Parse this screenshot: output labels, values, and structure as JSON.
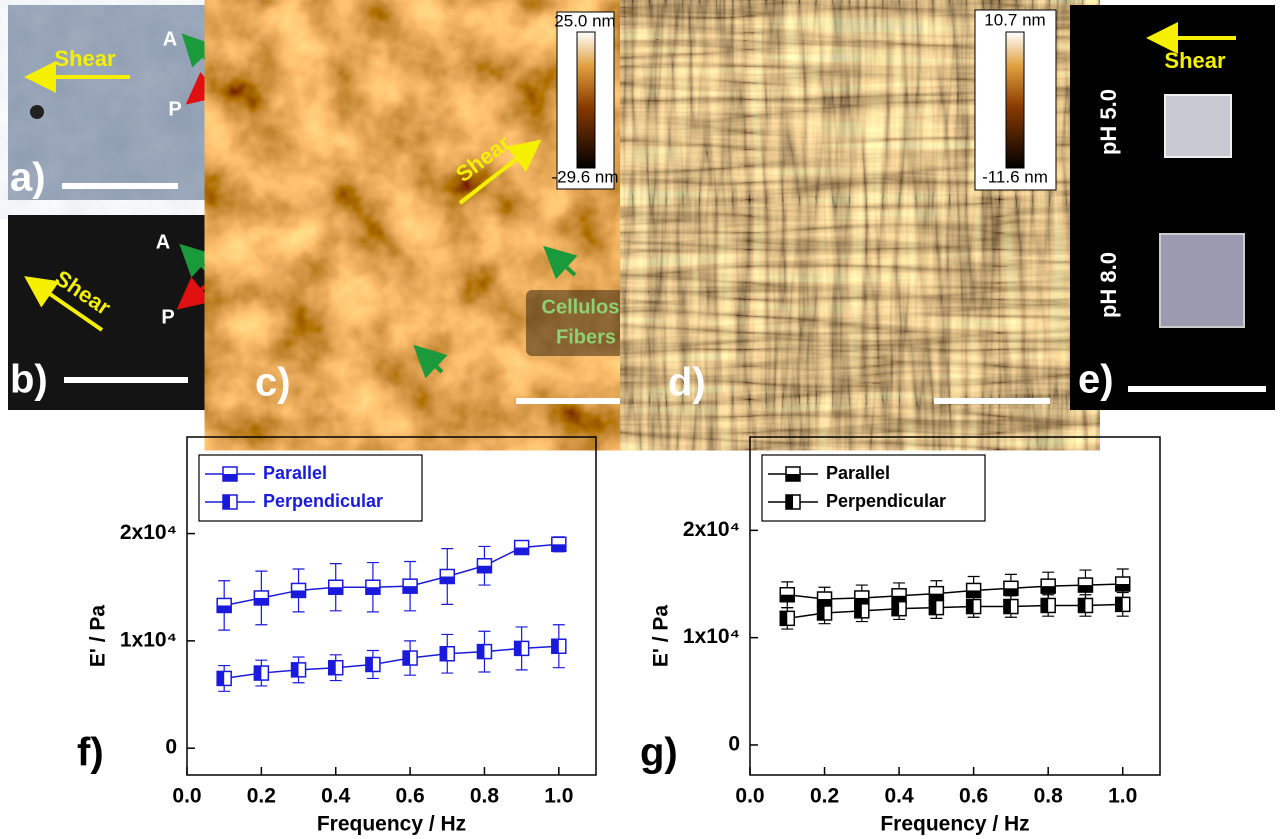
{
  "panels": {
    "a": {
      "label": "a)",
      "shear": "Shear",
      "analyzer": "A",
      "polarizer": "P"
    },
    "b": {
      "label": "b)",
      "shear": "Shear",
      "analyzer": "A",
      "polarizer": "P"
    },
    "c": {
      "label": "c)",
      "shear": "Shear",
      "colorbar_max": "25.0 nm",
      "colorbar_min": "-29.6 nm",
      "annotation": [
        "Cellulose",
        "Fibers"
      ]
    },
    "d": {
      "label": "d)",
      "colorbar_max": "10.7 nm",
      "colorbar_min": "-11.6 nm"
    },
    "e": {
      "label": "e)",
      "shear": "Shear",
      "top_sample": "pH 5.0",
      "bottom_sample": "pH 8.0"
    }
  },
  "chart_data": [
    {
      "type": "line",
      "panel_label": "f)",
      "xlabel": "Frequency / Hz",
      "ylabel": "E' / Pa",
      "x": [
        0.1,
        0.2,
        0.3,
        0.4,
        0.5,
        0.6,
        0.7,
        0.8,
        0.9,
        1.0
      ],
      "series": [
        {
          "name": "Parallel",
          "color": "#1a1adc",
          "marker_fill": "bottom",
          "values": [
            13300,
            14000,
            14700,
            15000,
            15000,
            15100,
            16000,
            17000,
            18700,
            19000
          ],
          "errors": [
            2300,
            2500,
            2000,
            2200,
            2300,
            2300,
            2600,
            1800,
            500,
            700
          ]
        },
        {
          "name": "Perpendicular",
          "color": "#1a1adc",
          "marker_fill": "left",
          "values": [
            6500,
            7000,
            7300,
            7500,
            7800,
            8400,
            8800,
            9000,
            9300,
            9500
          ],
          "errors": [
            1200,
            1200,
            1200,
            1200,
            1300,
            1600,
            1800,
            1900,
            2000,
            2000
          ]
        }
      ],
      "xlim": [
        0,
        1.1
      ],
      "ylim": [
        -2500,
        29000
      ],
      "xticks": [
        {
          "value": 0,
          "label": "0.0"
        },
        {
          "value": 0.2,
          "label": "0.2"
        },
        {
          "value": 0.4,
          "label": "0.4"
        },
        {
          "value": 0.6,
          "label": "0.6"
        },
        {
          "value": 0.8,
          "label": "0.8"
        },
        {
          "value": 1,
          "label": "1.0"
        }
      ],
      "yticks": [
        0,
        {
          "value": 10000,
          "label": "1x10⁴"
        },
        {
          "value": 20000,
          "label": "2x10⁴"
        }
      ],
      "legend": "upper left"
    },
    {
      "type": "line",
      "panel_label": "g)",
      "xlabel": "Frequency / Hz",
      "ylabel": "E' / Pa",
      "x": [
        0.1,
        0.2,
        0.3,
        0.4,
        0.5,
        0.6,
        0.7,
        0.8,
        0.9,
        1.0
      ],
      "series": [
        {
          "name": "Parallel",
          "color": "#000000",
          "marker_fill": "bottom",
          "values": [
            14000,
            13600,
            13700,
            13900,
            14100,
            14400,
            14600,
            14800,
            14900,
            15000
          ],
          "errors": [
            1200,
            1100,
            1200,
            1200,
            1200,
            1300,
            1300,
            1300,
            1400,
            1400
          ]
        },
        {
          "name": "Perpendicular",
          "color": "#000000",
          "marker_fill": "left",
          "values": [
            11800,
            12300,
            12500,
            12700,
            12800,
            12900,
            12900,
            13000,
            13000,
            13100
          ],
          "errors": [
            1000,
            1000,
            1000,
            1000,
            1000,
            1000,
            1000,
            1000,
            1000,
            1100
          ]
        }
      ],
      "xlim": [
        0,
        1.1
      ],
      "ylim": [
        -2800,
        28700
      ],
      "xticks": [
        {
          "value": 0,
          "label": "0.0"
        },
        {
          "value": 0.2,
          "label": "0.2"
        },
        {
          "value": 0.4,
          "label": "0.4"
        },
        {
          "value": 0.6,
          "label": "0.6"
        },
        {
          "value": 0.8,
          "label": "0.8"
        },
        {
          "value": 1,
          "label": "1.0"
        }
      ],
      "yticks": [
        0,
        {
          "value": 10000,
          "label": "1x10⁴"
        },
        {
          "value": 20000,
          "label": "2x10⁴"
        }
      ],
      "legend": "upper left"
    }
  ]
}
